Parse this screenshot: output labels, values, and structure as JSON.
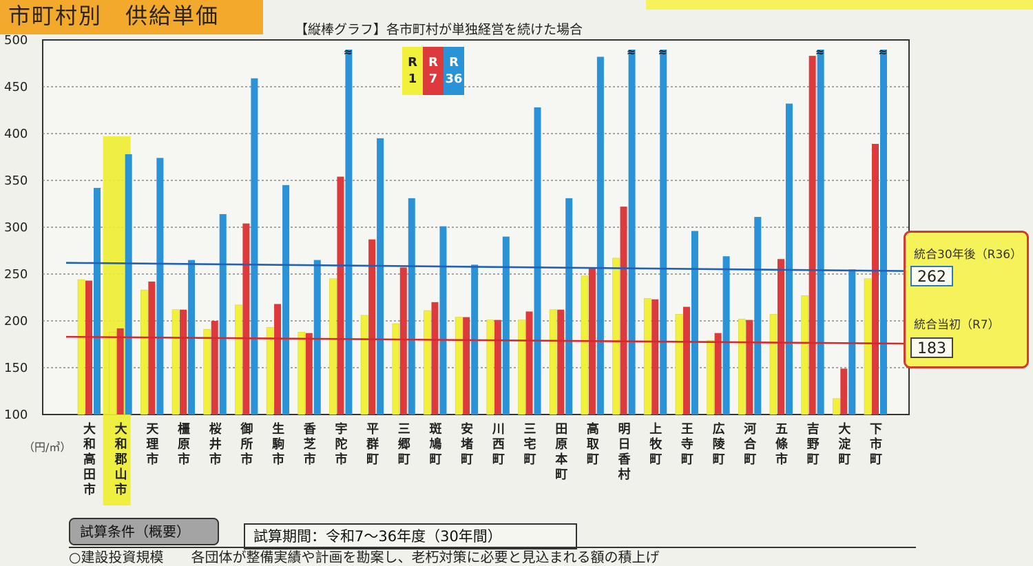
{
  "header": {
    "title": "市町村別　供給単価",
    "subtitle": "【縦棒グラフ】各市町村が単独経営を続けた場合"
  },
  "unit_label": "（円/㎥）",
  "legend": [
    {
      "label": "R\n1",
      "color": "#f1f03a"
    },
    {
      "label": "R\n7",
      "color": "#dd3a3c"
    },
    {
      "label": "R\n36",
      "color": "#2a93d8"
    }
  ],
  "annotations": {
    "r36_label": "統合30年後（R36）",
    "r36_value": "262",
    "r7_label": "統合当初（R7）",
    "r7_value": "183"
  },
  "conditions": {
    "tab_label": "試算条件（概要）",
    "period": "試算期間：令和7～36年度（30年間）",
    "line1": "○建設投資規模　　各団体が整備実績や計画を勘案し、老朽対策に必要と見込まれる額の積上げ"
  },
  "chart_data": {
    "type": "bar",
    "title": "【縦棒グラフ】各市町村が単独経営を続けた場合",
    "ylabel": "（円/㎥）",
    "ylim": [
      100,
      500
    ],
    "yticks": [
      100,
      150,
      200,
      250,
      300,
      350,
      400,
      450,
      500
    ],
    "grid": true,
    "legend_position": "top-center",
    "highlight_category": "大和郡山市",
    "categories": [
      "大和高田市",
      "大和郡山市",
      "天理市",
      "橿原市",
      "桜井市",
      "御所市",
      "生駒市",
      "香芝市",
      "宇陀市",
      "平群町",
      "三郷町",
      "斑鳩町",
      "安堵町",
      "川西町",
      "三宅町",
      "田原本町",
      "高取町",
      "明日香村",
      "上牧町",
      "王寺町",
      "広陵町",
      "河合町",
      "五條市",
      "吉野町",
      "大淀町",
      "下市町"
    ],
    "series": [
      {
        "name": "R1",
        "color": "#f1f03a",
        "values": [
          244,
          188,
          233,
          212,
          191,
          217,
          193,
          188,
          245,
          206,
          197,
          211,
          204,
          201,
          201,
          212,
          248,
          267,
          224,
          207,
          179,
          202,
          207,
          227,
          117,
          245
        ]
      },
      {
        "name": "R7",
        "color": "#dd3a3c",
        "values": [
          243,
          192,
          242,
          212,
          200,
          304,
          218,
          187,
          354,
          287,
          257,
          220,
          204,
          201,
          210,
          212,
          257,
          322,
          223,
          215,
          187,
          201,
          266,
          483,
          149,
          389
        ]
      },
      {
        "name": "R36",
        "color": "#2a93d8",
        "values": [
          342,
          378,
          374,
          265,
          314,
          459,
          345,
          265,
          500,
          395,
          331,
          301,
          260,
          290,
          428,
          331,
          482,
          500,
          500,
          296,
          269,
          311,
          432,
          500,
          255,
          500
        ]
      }
    ],
    "broken_bars": [
      "宇陀市",
      "明日香村",
      "上牧町",
      "吉野町",
      "下市町"
    ],
    "reference_lines": [
      {
        "label": "統合30年後（R36）",
        "value": 262,
        "color": "#2160b5"
      },
      {
        "label": "統合当初（R7）",
        "value": 183,
        "color": "#d7282d"
      }
    ]
  }
}
